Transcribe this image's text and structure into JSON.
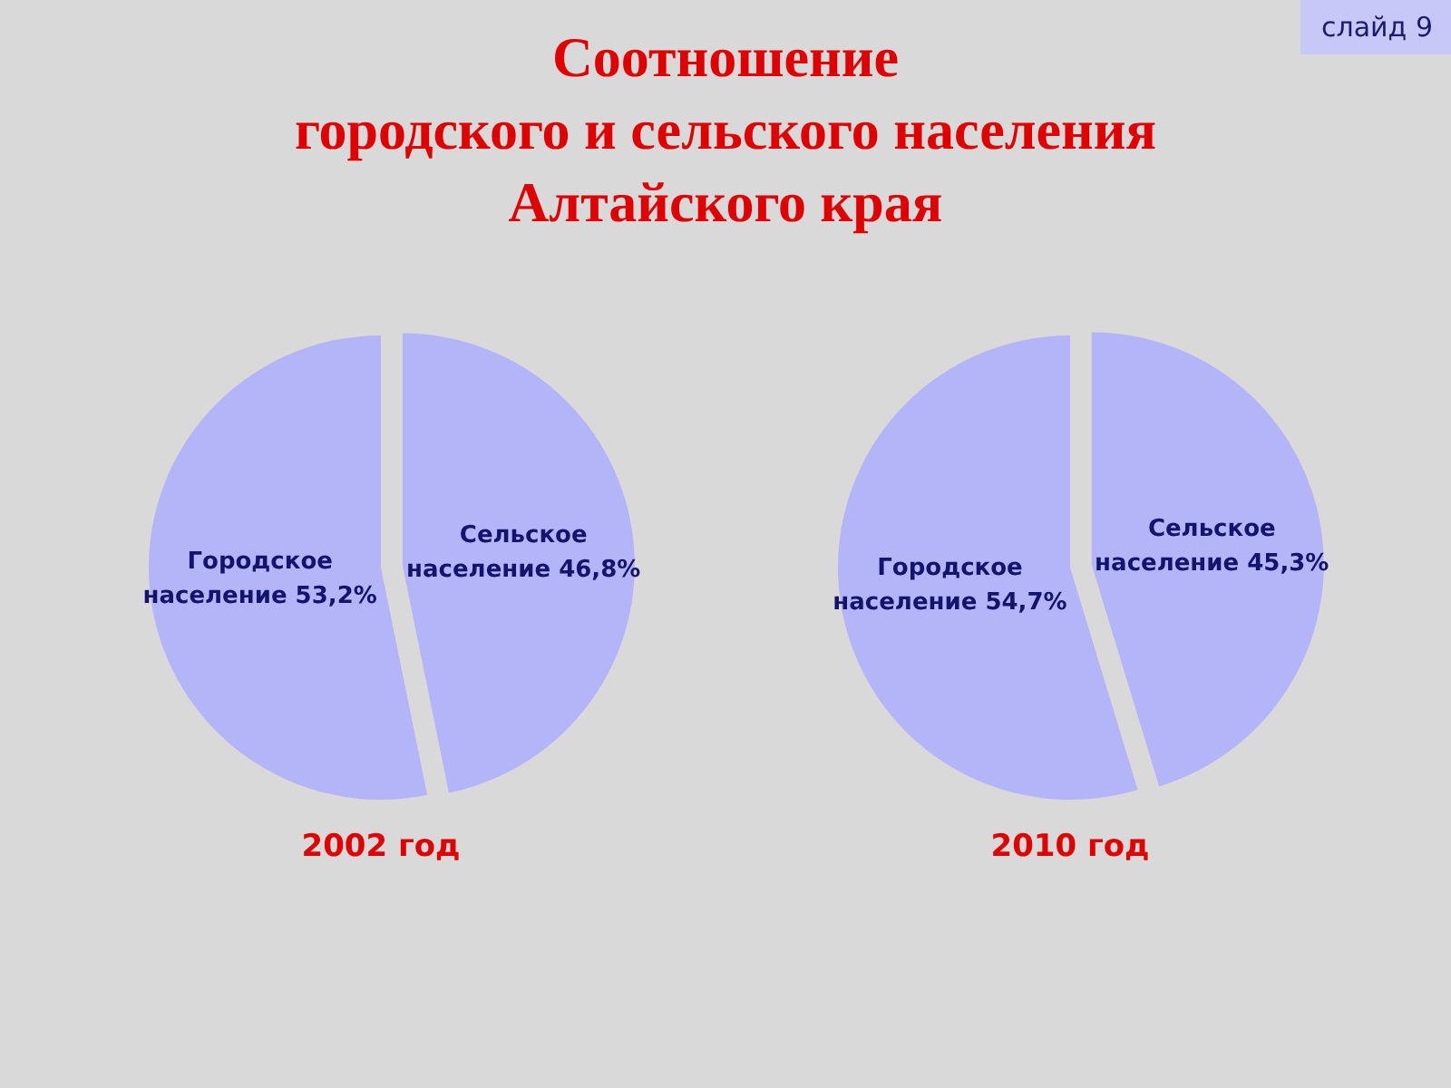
{
  "chart_data": [
    {
      "type": "pie",
      "title": "Соотношение\nгородского и сельского населения\nАлтайского края",
      "subtitle": "2002 год",
      "categories": [
        "Городское население",
        "Сельское население"
      ],
      "values": [
        53.2,
        46.8
      ],
      "colors": [
        "#b4b4f8",
        "#b4b4f8"
      ],
      "value_labels": [
        "53,2%",
        "46,8%"
      ],
      "annotations": [
        "слайд 9"
      ]
    },
    {
      "type": "pie",
      "subtitle": "2010 год",
      "categories": [
        "Городское население",
        "Сельское население"
      ],
      "values": [
        54.7,
        45.3
      ],
      "colors": [
        "#b4b4f8",
        "#b4b4f8"
      ],
      "value_labels": [
        "54,7%",
        "45,3%"
      ]
    }
  ]
}
